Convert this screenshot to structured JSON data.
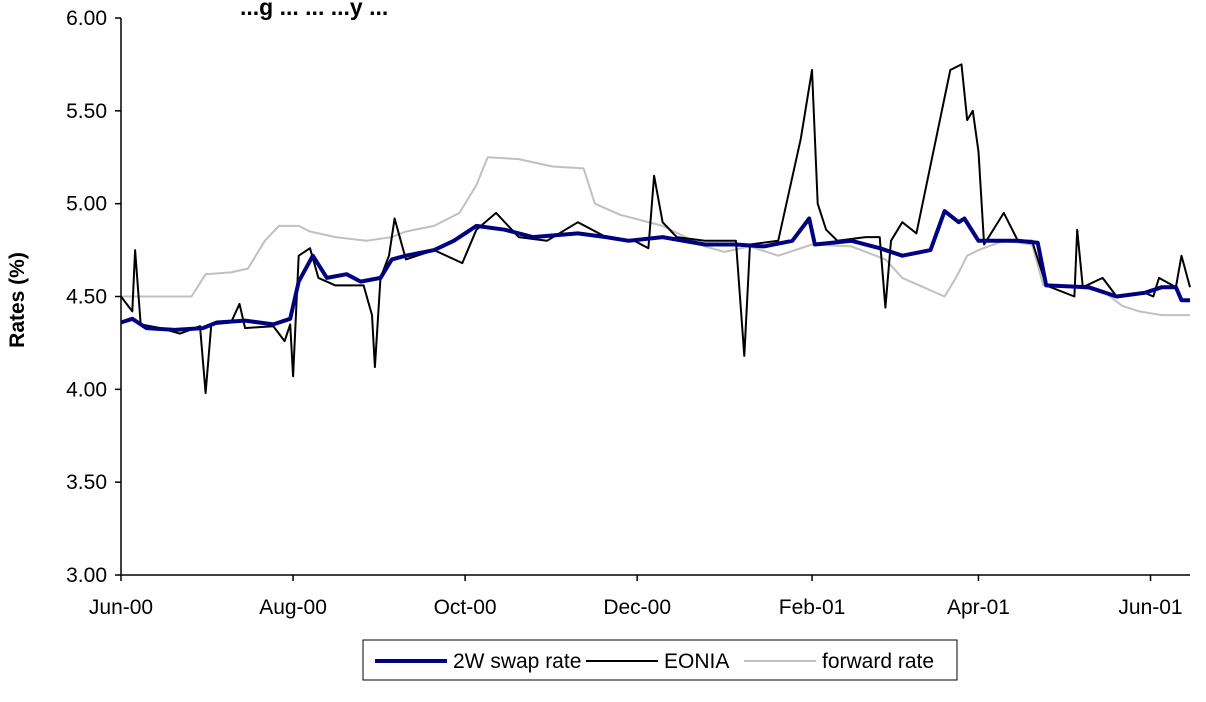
{
  "chart_data": {
    "type": "line",
    "title": "...g ... ... ...y ...",
    "ylabel": "Rates (%)",
    "xlabel": "",
    "ylim": [
      3.0,
      6.0
    ],
    "yticks": [
      "3.00",
      "3.50",
      "4.00",
      "4.50",
      "5.00",
      "5.50",
      "6.00"
    ],
    "xlim": [
      "2000-06-01",
      "2001-06-15"
    ],
    "xticks": [
      {
        "date": "2000-06-01",
        "label": "Jun-00"
      },
      {
        "date": "2000-08-01",
        "label": "Aug-00"
      },
      {
        "date": "2000-10-01",
        "label": "Oct-00"
      },
      {
        "date": "2000-12-01",
        "label": "Dec-00"
      },
      {
        "date": "2001-02-01",
        "label": "Feb-01"
      },
      {
        "date": "2001-04-01",
        "label": "Apr-01"
      },
      {
        "date": "2001-06-01",
        "label": "Jun-01"
      }
    ],
    "grid": false,
    "legend_position": "bottom",
    "series": [
      {
        "name": "forward rate",
        "color": "#c0c0c0",
        "width": 2,
        "points": [
          [
            "2000-06-01",
            4.5
          ],
          [
            "2000-06-18",
            4.5
          ],
          [
            "2000-06-26",
            4.5
          ],
          [
            "2000-07-01",
            4.62
          ],
          [
            "2000-07-10",
            4.63
          ],
          [
            "2000-07-16",
            4.65
          ],
          [
            "2000-07-22",
            4.8
          ],
          [
            "2000-07-27",
            4.88
          ],
          [
            "2000-08-03",
            4.88
          ],
          [
            "2000-08-07",
            4.85
          ],
          [
            "2000-08-16",
            4.82
          ],
          [
            "2000-08-27",
            4.8
          ],
          [
            "2000-09-05",
            4.82
          ],
          [
            "2000-09-10",
            4.85
          ],
          [
            "2000-09-20",
            4.88
          ],
          [
            "2000-09-29",
            4.95
          ],
          [
            "2000-10-05",
            5.1
          ],
          [
            "2000-10-09",
            5.25
          ],
          [
            "2000-10-20",
            5.24
          ],
          [
            "2000-11-01",
            5.2
          ],
          [
            "2000-11-12",
            5.19
          ],
          [
            "2000-11-16",
            5.0
          ],
          [
            "2000-11-25",
            4.94
          ],
          [
            "2000-12-10",
            4.88
          ],
          [
            "2000-12-25",
            4.77
          ],
          [
            "2001-01-01",
            4.74
          ],
          [
            "2001-01-10",
            4.77
          ],
          [
            "2001-01-20",
            4.72
          ],
          [
            "2001-02-01",
            4.78
          ],
          [
            "2001-02-15",
            4.77
          ],
          [
            "2001-02-27",
            4.7
          ],
          [
            "2001-03-05",
            4.6
          ],
          [
            "2001-03-20",
            4.5
          ],
          [
            "2001-03-24",
            4.6
          ],
          [
            "2001-03-28",
            4.72
          ],
          [
            "2001-04-01",
            4.75
          ],
          [
            "2001-04-10",
            4.8
          ],
          [
            "2001-04-20",
            4.78
          ],
          [
            "2001-04-24",
            4.56
          ],
          [
            "2001-05-05",
            4.55
          ],
          [
            "2001-05-15",
            4.53
          ],
          [
            "2001-05-22",
            4.45
          ],
          [
            "2001-05-28",
            4.42
          ],
          [
            "2001-06-05",
            4.4
          ],
          [
            "2001-06-15",
            4.4
          ]
        ]
      },
      {
        "name": "EONIA",
        "color": "#000000",
        "width": 2,
        "points": [
          [
            "2000-06-01",
            4.5
          ],
          [
            "2000-06-05",
            4.42
          ],
          [
            "2000-06-06",
            4.75
          ],
          [
            "2000-06-08",
            4.35
          ],
          [
            "2000-06-15",
            4.33
          ],
          [
            "2000-06-22",
            4.3
          ],
          [
            "2000-06-29",
            4.34
          ],
          [
            "2000-07-01",
            3.98
          ],
          [
            "2000-07-03",
            4.35
          ],
          [
            "2000-07-10",
            4.36
          ],
          [
            "2000-07-13",
            4.46
          ],
          [
            "2000-07-15",
            4.33
          ],
          [
            "2000-07-25",
            4.34
          ],
          [
            "2000-07-29",
            4.26
          ],
          [
            "2000-07-31",
            4.35
          ],
          [
            "2000-08-01",
            4.07
          ],
          [
            "2000-08-03",
            4.72
          ],
          [
            "2000-08-07",
            4.76
          ],
          [
            "2000-08-10",
            4.6
          ],
          [
            "2000-08-16",
            4.56
          ],
          [
            "2000-08-26",
            4.56
          ],
          [
            "2000-08-29",
            4.4
          ],
          [
            "2000-08-30",
            4.12
          ],
          [
            "2000-09-01",
            4.6
          ],
          [
            "2000-09-04",
            4.72
          ],
          [
            "2000-09-06",
            4.92
          ],
          [
            "2000-09-10",
            4.7
          ],
          [
            "2000-09-20",
            4.75
          ],
          [
            "2000-09-30",
            4.68
          ],
          [
            "2000-10-05",
            4.86
          ],
          [
            "2000-10-12",
            4.95
          ],
          [
            "2000-10-20",
            4.82
          ],
          [
            "2000-10-30",
            4.8
          ],
          [
            "2000-11-10",
            4.9
          ],
          [
            "2000-11-20",
            4.82
          ],
          [
            "2000-11-30",
            4.8
          ],
          [
            "2000-12-05",
            4.76
          ],
          [
            "2000-12-07",
            5.15
          ],
          [
            "2000-12-10",
            4.9
          ],
          [
            "2000-12-15",
            4.82
          ],
          [
            "2000-12-25",
            4.8
          ],
          [
            "2001-01-05",
            4.8
          ],
          [
            "2001-01-08",
            4.18
          ],
          [
            "2001-01-10",
            4.78
          ],
          [
            "2001-01-20",
            4.8
          ],
          [
            "2001-01-28",
            5.35
          ],
          [
            "2001-02-01",
            5.72
          ],
          [
            "2001-02-03",
            5.0
          ],
          [
            "2001-02-06",
            4.86
          ],
          [
            "2001-02-10",
            4.8
          ],
          [
            "2001-02-20",
            4.82
          ],
          [
            "2001-02-25",
            4.82
          ],
          [
            "2001-02-27",
            4.44
          ],
          [
            "2001-03-01",
            4.8
          ],
          [
            "2001-03-05",
            4.9
          ],
          [
            "2001-03-10",
            4.84
          ],
          [
            "2001-03-22",
            5.72
          ],
          [
            "2001-03-26",
            5.75
          ],
          [
            "2001-03-28",
            5.45
          ],
          [
            "2001-03-30",
            5.5
          ],
          [
            "2001-04-01",
            5.28
          ],
          [
            "2001-04-03",
            4.78
          ],
          [
            "2001-04-10",
            4.95
          ],
          [
            "2001-04-15",
            4.8
          ],
          [
            "2001-04-20",
            4.8
          ],
          [
            "2001-04-25",
            4.56
          ],
          [
            "2001-05-05",
            4.5
          ],
          [
            "2001-05-06",
            4.86
          ],
          [
            "2001-05-08",
            4.55
          ],
          [
            "2001-05-15",
            4.6
          ],
          [
            "2001-05-20",
            4.5
          ],
          [
            "2001-05-30",
            4.52
          ],
          [
            "2001-06-02",
            4.5
          ],
          [
            "2001-06-04",
            4.6
          ],
          [
            "2001-06-10",
            4.55
          ],
          [
            "2001-06-12",
            4.72
          ],
          [
            "2001-06-15",
            4.55
          ]
        ]
      },
      {
        "name": "2W swap rate",
        "color": "#000080",
        "width": 4,
        "points": [
          [
            "2000-06-01",
            4.36
          ],
          [
            "2000-06-05",
            4.38
          ],
          [
            "2000-06-10",
            4.33
          ],
          [
            "2000-06-20",
            4.32
          ],
          [
            "2000-06-30",
            4.33
          ],
          [
            "2000-07-05",
            4.36
          ],
          [
            "2000-07-15",
            4.37
          ],
          [
            "2000-07-25",
            4.35
          ],
          [
            "2000-07-31",
            4.38
          ],
          [
            "2000-08-03",
            4.58
          ],
          [
            "2000-08-08",
            4.72
          ],
          [
            "2000-08-13",
            4.6
          ],
          [
            "2000-08-20",
            4.62
          ],
          [
            "2000-08-25",
            4.58
          ],
          [
            "2000-09-01",
            4.6
          ],
          [
            "2000-09-05",
            4.7
          ],
          [
            "2000-09-10",
            4.72
          ],
          [
            "2000-09-20",
            4.75
          ],
          [
            "2000-09-27",
            4.8
          ],
          [
            "2000-10-05",
            4.88
          ],
          [
            "2000-10-15",
            4.86
          ],
          [
            "2000-10-25",
            4.82
          ],
          [
            "2000-11-10",
            4.84
          ],
          [
            "2000-11-20",
            4.82
          ],
          [
            "2000-11-28",
            4.8
          ],
          [
            "2000-12-10",
            4.82
          ],
          [
            "2000-12-25",
            4.78
          ],
          [
            "2001-01-05",
            4.78
          ],
          [
            "2001-01-15",
            4.77
          ],
          [
            "2001-01-25",
            4.8
          ],
          [
            "2001-01-31",
            4.92
          ],
          [
            "2001-02-02",
            4.78
          ],
          [
            "2001-02-15",
            4.8
          ],
          [
            "2001-02-25",
            4.76
          ],
          [
            "2001-03-05",
            4.72
          ],
          [
            "2001-03-15",
            4.75
          ],
          [
            "2001-03-20",
            4.96
          ],
          [
            "2001-03-25",
            4.9
          ],
          [
            "2001-03-27",
            4.92
          ],
          [
            "2001-04-01",
            4.8
          ],
          [
            "2001-04-15",
            4.8
          ],
          [
            "2001-04-22",
            4.79
          ],
          [
            "2001-04-25",
            4.56
          ],
          [
            "2001-05-10",
            4.55
          ],
          [
            "2001-05-20",
            4.5
          ],
          [
            "2001-05-30",
            4.52
          ],
          [
            "2001-06-05",
            4.55
          ],
          [
            "2001-06-10",
            4.55
          ],
          [
            "2001-06-12",
            4.48
          ],
          [
            "2001-06-15",
            4.48
          ]
        ]
      }
    ],
    "legend": [
      "2W swap rate",
      "EONIA",
      "forward rate"
    ]
  }
}
